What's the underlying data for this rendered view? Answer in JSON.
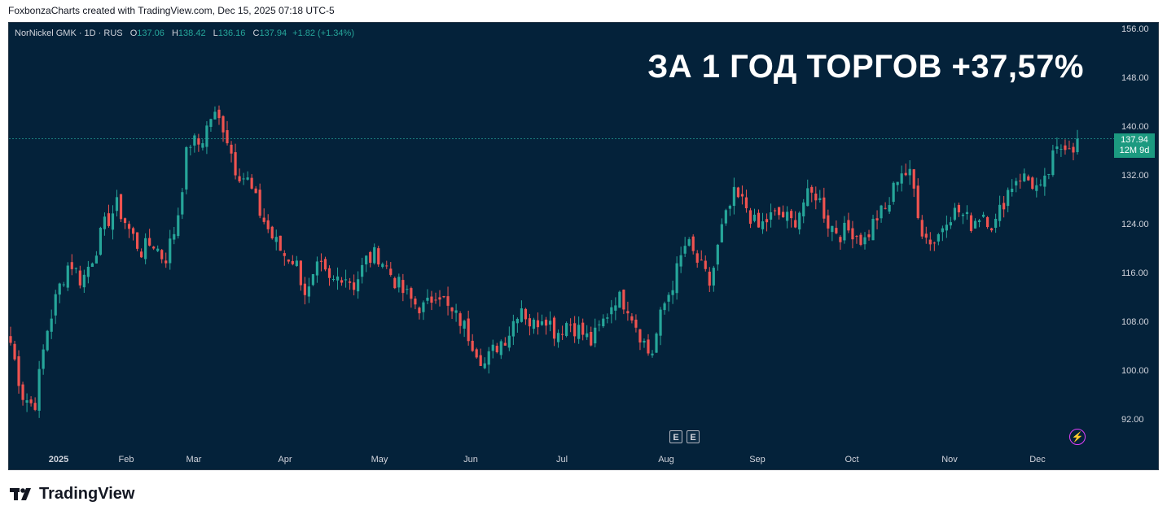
{
  "credit": "FoxbonzaCharts created with TradingView.com, Dec 15, 2025 07:18 UTC-5",
  "legend": {
    "symbol": "NorNickel GMK · 1D · RUS",
    "open_label": "O",
    "open": "137.06",
    "high_label": "H",
    "high": "138.42",
    "low_label": "L",
    "low": "136.16",
    "close_label": "C",
    "close": "137.94",
    "change": "+1.82 (+1.34%)"
  },
  "headline": "ЗА 1 ГОД ТОРГОВ +37,57%",
  "price_tag": {
    "price": "137.94",
    "countdown": "12M 9d"
  },
  "events": [
    "E",
    "E"
  ],
  "brand": "TradingView",
  "colors": {
    "up": "#26a69a",
    "down": "#ef5350",
    "background": "#04223a",
    "price_line": "#26a69a"
  },
  "chart_data": {
    "type": "candlestick",
    "ylim": [
      88,
      157
    ],
    "y_ticks": [
      "156.00",
      "148.00",
      "140.00",
      "132.00",
      "124.00",
      "116.00",
      "108.00",
      "100.00",
      "92.00"
    ],
    "y_tick_values": [
      156,
      148,
      140,
      132,
      124,
      116,
      108,
      100,
      92
    ],
    "x_ticks": [
      "2025",
      "Feb",
      "Mar",
      "Apr",
      "May",
      "Jun",
      "Jul",
      "Aug",
      "Sep",
      "Oct",
      "Nov",
      "Dec"
    ],
    "last_price": 137.94,
    "close_path": [
      104.5,
      96,
      94,
      106,
      113,
      118,
      114.5,
      119,
      124,
      127,
      123,
      119.5,
      121,
      118,
      124,
      137.5,
      137,
      142,
      140,
      133,
      131,
      126,
      122,
      119,
      118,
      112,
      117,
      114,
      116,
      114,
      118,
      119,
      116,
      113,
      111,
      110,
      113.5,
      109.5,
      108,
      104.5,
      101,
      104,
      106,
      111,
      107,
      109.5,
      106,
      108,
      106.5,
      104.5,
      108,
      112,
      111,
      106.5,
      102,
      110,
      115,
      121,
      117.5,
      114,
      123,
      128.5,
      127,
      123,
      125,
      125.5,
      124,
      128,
      129,
      124,
      122.5,
      123,
      121,
      125,
      126.5,
      133,
      131.5,
      122,
      121,
      125.5,
      126,
      124,
      126,
      123.5,
      129,
      132,
      131,
      129,
      135,
      137.5,
      136.5
    ]
  }
}
